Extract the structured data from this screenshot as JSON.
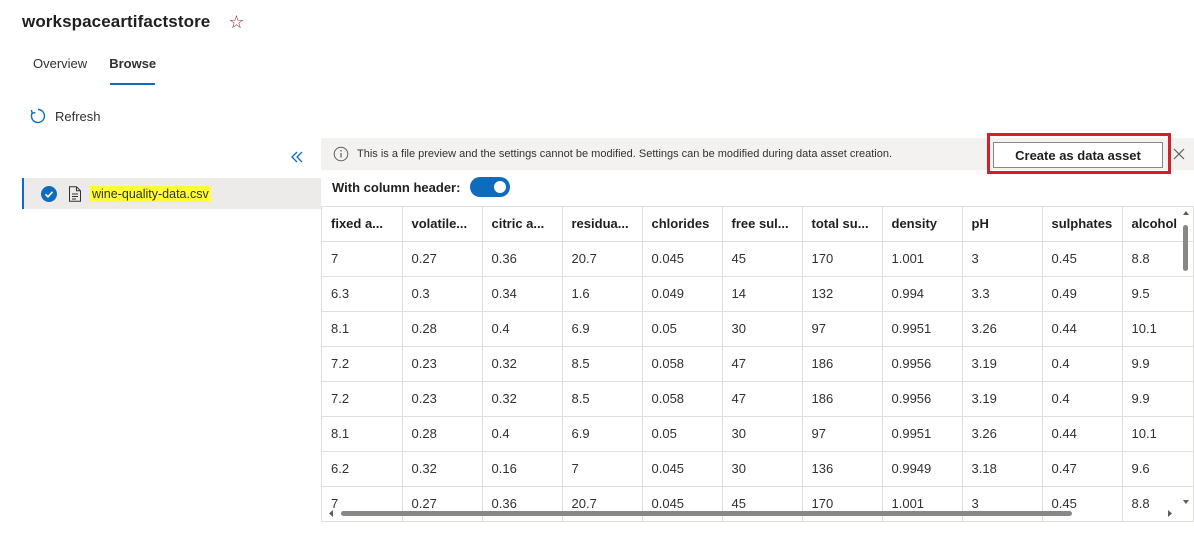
{
  "header": {
    "title": "workspaceartifactstore",
    "star_icon": "star-outline-icon"
  },
  "tabs": [
    {
      "label": "Overview",
      "active": false
    },
    {
      "label": "Browse",
      "active": true
    }
  ],
  "toolbar": {
    "refresh_label": "Refresh"
  },
  "tree": {
    "selected_file": "wine-quality-data.csv"
  },
  "preview": {
    "info_text": "This is a file preview and the settings cannot be modified. Settings can be modified during data asset creation.",
    "create_button_label": "Create as data asset",
    "column_header_label": "With column header:",
    "column_header_enabled": true,
    "columns": [
      "fixed a...",
      "volatile...",
      "citric a...",
      "residua...",
      "chlorides",
      "free sul...",
      "total su...",
      "density",
      "pH",
      "sulphates",
      "alcohol"
    ],
    "rows": [
      [
        "7",
        "0.27",
        "0.36",
        "20.7",
        "0.045",
        "45",
        "170",
        "1.001",
        "3",
        "0.45",
        "8.8"
      ],
      [
        "6.3",
        "0.3",
        "0.34",
        "1.6",
        "0.049",
        "14",
        "132",
        "0.994",
        "3.3",
        "0.49",
        "9.5"
      ],
      [
        "8.1",
        "0.28",
        "0.4",
        "6.9",
        "0.05",
        "30",
        "97",
        "0.9951",
        "3.26",
        "0.44",
        "10.1"
      ],
      [
        "7.2",
        "0.23",
        "0.32",
        "8.5",
        "0.058",
        "47",
        "186",
        "0.9956",
        "3.19",
        "0.4",
        "9.9"
      ],
      [
        "7.2",
        "0.23",
        "0.32",
        "8.5",
        "0.058",
        "47",
        "186",
        "0.9956",
        "3.19",
        "0.4",
        "9.9"
      ],
      [
        "8.1",
        "0.28",
        "0.4",
        "6.9",
        "0.05",
        "30",
        "97",
        "0.9951",
        "3.26",
        "0.44",
        "10.1"
      ],
      [
        "6.2",
        "0.32",
        "0.16",
        "7",
        "0.045",
        "30",
        "136",
        "0.9949",
        "3.18",
        "0.47",
        "9.6"
      ],
      [
        "7",
        "0.27",
        "0.36",
        "20.7",
        "0.045",
        "45",
        "170",
        "1.001",
        "3",
        "0.45",
        "8.8"
      ]
    ]
  },
  "colors": {
    "accent": "#0f6cbd",
    "highlight_box": "#d1202b",
    "file_highlight": "#ffff33"
  }
}
